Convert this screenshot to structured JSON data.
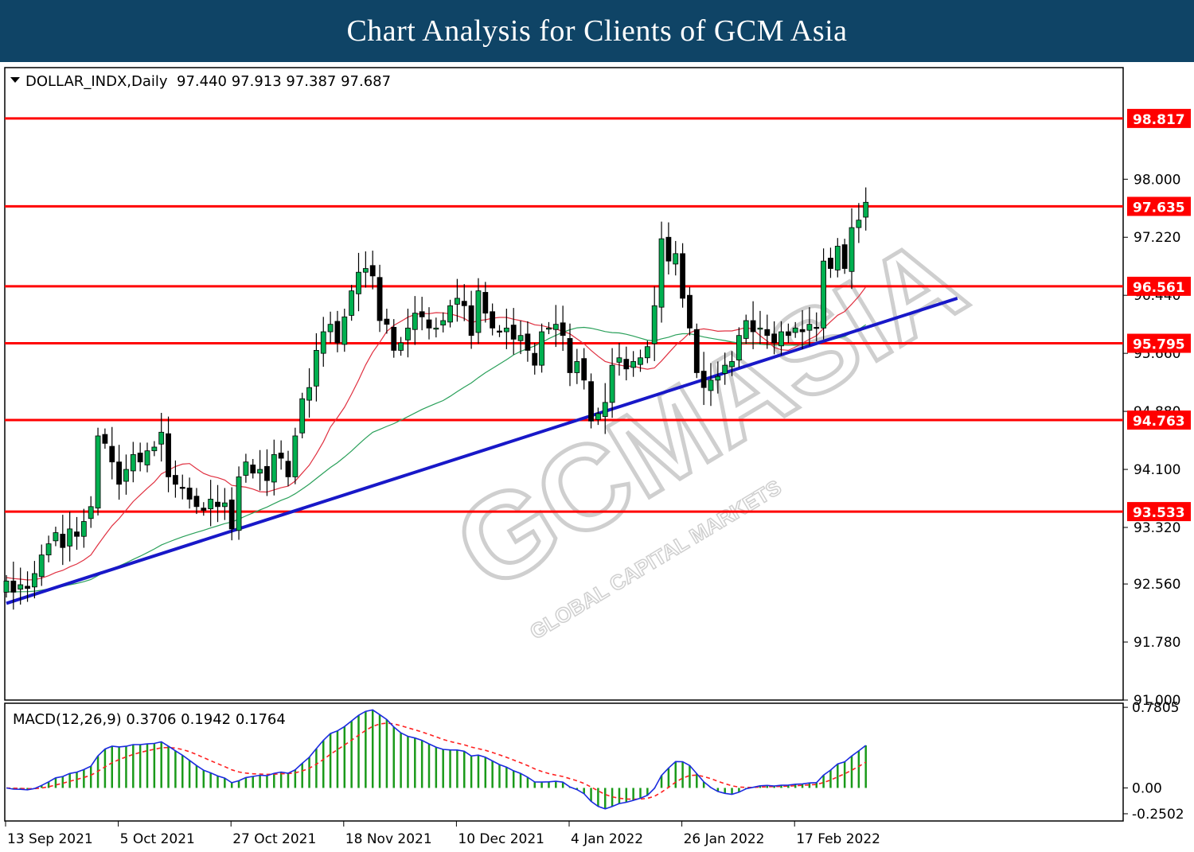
{
  "header": {
    "title": "Chart Analysis for Clients of GCM Asia"
  },
  "watermark": {
    "main": "GCMASIA",
    "sub": "GLOBAL CAPITAL MARKETS"
  },
  "chart_data": {
    "type": "candlestick",
    "symbol_info": "DOLLAR_INDX,Daily  97.440 97.913 97.387 97.687",
    "price_axis": {
      "min": 91.0,
      "max": 99.5,
      "ticks": [
        "98.000",
        "97.220",
        "96.440",
        "95.660",
        "94.880",
        "94.100",
        "93.320",
        "92.560",
        "91.780",
        "91.000"
      ]
    },
    "x_labels": [
      "13 Sep 2021",
      "5 Oct 2021",
      "27 Oct 2021",
      "18 Nov 2021",
      "10 Dec 2021",
      "4 Jan 2022",
      "26 Jan 2022",
      "17 Feb 2022"
    ],
    "x_label_index": [
      0,
      16,
      32,
      48,
      64,
      80,
      96,
      112
    ],
    "levels": [
      {
        "value": 98.817,
        "label": "98.817"
      },
      {
        "value": 97.635,
        "label": "97.635"
      },
      {
        "value": 96.561,
        "label": "96.561"
      },
      {
        "value": 95.795,
        "label": "95.795"
      },
      {
        "value": 94.763,
        "label": "94.763"
      },
      {
        "value": 93.533,
        "label": "93.533"
      }
    ],
    "trendline": {
      "from": {
        "index": 0,
        "price": 92.3
      },
      "to": {
        "index": 135,
        "price": 96.4
      }
    },
    "closes": [
      92.6,
      92.45,
      92.55,
      92.5,
      92.7,
      92.95,
      93.1,
      93.25,
      93.05,
      93.3,
      93.2,
      93.4,
      93.6,
      94.55,
      94.45,
      94.2,
      93.9,
      94.1,
      94.3,
      94.2,
      94.35,
      94.4,
      94.6,
      94.0,
      93.9,
      93.85,
      93.7,
      93.6,
      93.55,
      93.7,
      93.6,
      93.65,
      93.3,
      94.0,
      94.2,
      94.05,
      94.1,
      93.95,
      94.3,
      94.25,
      94.0,
      94.55,
      95.05,
      95.2,
      95.7,
      95.95,
      96.05,
      95.8,
      96.15,
      96.5,
      96.75,
      96.8,
      96.7,
      96.1,
      96.05,
      95.7,
      95.8,
      96.0,
      96.2,
      96.15,
      96.0,
      96.0,
      96.1,
      96.3,
      96.4,
      96.3,
      95.9,
      96.5,
      96.2,
      96.0,
      95.95,
      96.0,
      95.85,
      95.9,
      95.7,
      95.5,
      95.95,
      96.0,
      96.05,
      95.9,
      95.4,
      95.55,
      95.3,
      94.75,
      94.85,
      95.0,
      95.5,
      95.6,
      95.45,
      95.55,
      95.6,
      95.75,
      96.3,
      97.2,
      96.9,
      97.0,
      96.4,
      96.0,
      95.4,
      95.2,
      95.3,
      95.35,
      95.5,
      95.55,
      95.9,
      96.1,
      95.95,
      96.0,
      95.9,
      95.8,
      95.95,
      95.9,
      96.0,
      95.95,
      96.05,
      96.0,
      96.9,
      96.8,
      97.1,
      96.8,
      97.35,
      97.45,
      97.69
    ],
    "sma_short_start": 92.65,
    "sma_long_start": 92.45,
    "macd": {
      "params": "MACD(12,26,9) 0.3706 0.1942 0.1764",
      "ticks": [
        {
          "value": 0.7805,
          "label": "0.7805"
        },
        {
          "value": 0.0,
          "label": "0.00"
        },
        {
          "value": -0.2502,
          "label": "-0.2502"
        }
      ],
      "range": [
        -0.32,
        0.82
      ]
    }
  }
}
